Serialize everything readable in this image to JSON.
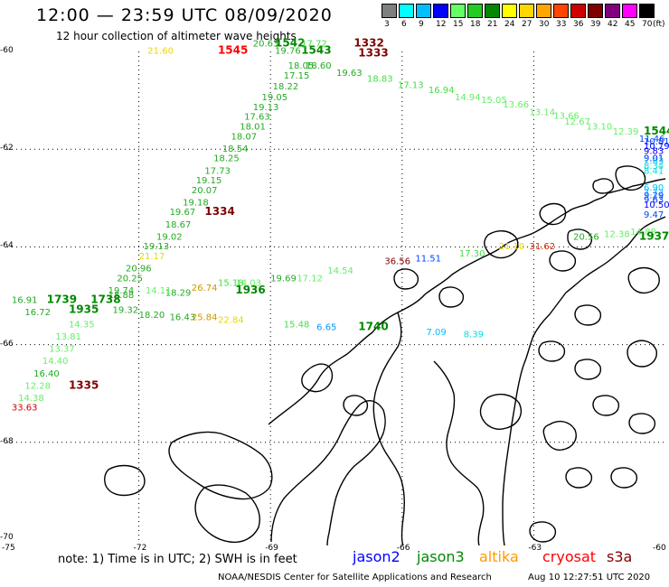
{
  "header": {
    "title": "12:00 — 23:59 UTC 08/09/2020",
    "subtitle": "12 hour collection of altimeter wave heights"
  },
  "legend": {
    "unit": "(ft)",
    "bins": [
      {
        "label": "3",
        "color": "#7f7f7f"
      },
      {
        "label": "6",
        "color": "#00ffff"
      },
      {
        "label": "9",
        "color": "#00bfff"
      },
      {
        "label": "12",
        "color": "#0000ff"
      },
      {
        "label": "15",
        "color": "#66ff66"
      },
      {
        "label": "18",
        "color": "#22cc22"
      },
      {
        "label": "21",
        "color": "#008800"
      },
      {
        "label": "24",
        "color": "#ffff00"
      },
      {
        "label": "27",
        "color": "#ffd700"
      },
      {
        "label": "30",
        "color": "#ffa500"
      },
      {
        "label": "33",
        "color": "#ff4500"
      },
      {
        "label": "36",
        "color": "#cc0000"
      },
      {
        "label": "39",
        "color": "#800000"
      },
      {
        "label": "42",
        "color": "#800080"
      },
      {
        "label": "45",
        "color": "#ff00ff"
      },
      {
        "label": "70",
        "color": "#000000"
      }
    ]
  },
  "axes": {
    "lon_labels": [
      "-75",
      "-72",
      "-69",
      "-66",
      "-63",
      "-60"
    ],
    "lat_labels": [
      "-60",
      "-62",
      "-64",
      "-66",
      "-68",
      "-70"
    ],
    "lon_range": [
      -75,
      -60
    ],
    "lat_range": [
      -60,
      -70
    ]
  },
  "observations": [
    {
      "t": "21.60",
      "lon": -71.8,
      "lat": -60.05,
      "c": "#e6d800"
    },
    {
      "t": "1545",
      "lon": -70.2,
      "lat": -60.05,
      "c": "#ff0000",
      "b": 1
    },
    {
      "t": "20.63",
      "lon": -69.4,
      "lat": -59.9,
      "c": "#22aa22"
    },
    {
      "t": "1542",
      "lon": -68.9,
      "lat": -59.9,
      "c": "#008800",
      "b": 1
    },
    {
      "t": "19.76",
      "lon": -68.9,
      "lat": -60.05,
      "c": "#22aa22"
    },
    {
      "t": "1543",
      "lon": -68.3,
      "lat": -60.05,
      "c": "#008800",
      "b": 1
    },
    {
      "t": "17.72",
      "lon": -68.3,
      "lat": -59.9,
      "c": "#44dd44"
    },
    {
      "t": "1332",
      "lon": -67.1,
      "lat": -59.9,
      "c": "#800000",
      "b": 1
    },
    {
      "t": "1333",
      "lon": -67.0,
      "lat": -60.1,
      "c": "#800000",
      "b": 1
    },
    {
      "t": "18.05",
      "lon": -68.6,
      "lat": -60.35,
      "c": "#22aa22"
    },
    {
      "t": "18.60",
      "lon": -68.2,
      "lat": -60.35,
      "c": "#22aa22"
    },
    {
      "t": "19.63",
      "lon": -67.5,
      "lat": -60.5,
      "c": "#22aa22"
    },
    {
      "t": "17.15",
      "lon": -68.7,
      "lat": -60.55,
      "c": "#22aa22"
    },
    {
      "t": "18.83",
      "lon": -66.8,
      "lat": -60.62,
      "c": "#44dd44"
    },
    {
      "t": "17.13",
      "lon": -66.1,
      "lat": -60.75,
      "c": "#44dd44"
    },
    {
      "t": "18.22",
      "lon": -68.95,
      "lat": -60.78,
      "c": "#22aa22"
    },
    {
      "t": "16.94",
      "lon": -65.4,
      "lat": -60.85,
      "c": "#44dd44"
    },
    {
      "t": "19.05",
      "lon": -69.2,
      "lat": -61.0,
      "c": "#22aa22"
    },
    {
      "t": "14.94",
      "lon": -64.8,
      "lat": -61.0,
      "c": "#66ee66"
    },
    {
      "t": "15.05",
      "lon": -64.2,
      "lat": -61.05,
      "c": "#66ee66"
    },
    {
      "t": "13.66",
      "lon": -63.7,
      "lat": -61.15,
      "c": "#66ee66"
    },
    {
      "t": "19.13",
      "lon": -69.4,
      "lat": -61.2,
      "c": "#22aa22"
    },
    {
      "t": "13.14",
      "lon": -63.1,
      "lat": -61.3,
      "c": "#66ee66"
    },
    {
      "t": "13.66",
      "lon": -62.55,
      "lat": -61.38,
      "c": "#66ee66"
    },
    {
      "t": "17.63",
      "lon": -69.6,
      "lat": -61.4,
      "c": "#22aa22"
    },
    {
      "t": "12.67",
      "lon": -62.3,
      "lat": -61.5,
      "c": "#66ee66"
    },
    {
      "t": "18.01",
      "lon": -69.7,
      "lat": -61.6,
      "c": "#22aa22"
    },
    {
      "t": "13.10",
      "lon": -61.8,
      "lat": -61.6,
      "c": "#66ee66"
    },
    {
      "t": "12.39",
      "lon": -61.2,
      "lat": -61.7,
      "c": "#66ee66"
    },
    {
      "t": "1544",
      "lon": -60.0,
      "lat": -61.7,
      "c": "#008800",
      "b": 1
    },
    {
      "t": "18.07",
      "lon": -69.9,
      "lat": -61.8,
      "c": "#22aa22"
    },
    {
      "t": "11.46",
      "lon": -60.6,
      "lat": -61.85,
      "c": "#0044ff"
    },
    {
      "t": "10.81",
      "lon": -60.1,
      "lat": -61.9,
      "c": "#0044ff"
    },
    {
      "t": "10.79",
      "lon": -59.6,
      "lat": -62.0,
      "c": "#0000ff"
    },
    {
      "t": "18.54",
      "lon": -70.1,
      "lat": -62.05,
      "c": "#22aa22"
    },
    {
      "t": "9.83",
      "lon": -59.1,
      "lat": -62.1,
      "c": "#0000ff"
    },
    {
      "t": "18.25",
      "lon": -70.3,
      "lat": -62.25,
      "c": "#22aa22"
    },
    {
      "t": "9.01",
      "lon": -58.7,
      "lat": -62.25,
      "c": "#0000ff"
    },
    {
      "t": "7.63",
      "lon": -58.3,
      "lat": -62.3,
      "c": "#00bfff"
    },
    {
      "t": "17.73",
      "lon": -70.5,
      "lat": -62.5,
      "c": "#22aa22"
    },
    {
      "t": "8.34",
      "lon": -57.9,
      "lat": -62.4,
      "c": "#00dddd"
    },
    {
      "t": "8.41",
      "lon": -57.6,
      "lat": -62.5,
      "c": "#00dddd"
    },
    {
      "t": "19.15",
      "lon": -70.7,
      "lat": -62.7,
      "c": "#22aa22"
    },
    {
      "t": "20.07",
      "lon": -70.8,
      "lat": -62.9,
      "c": "#22aa22"
    },
    {
      "t": "6.90",
      "lon": -57.4,
      "lat": -62.85,
      "c": "#00bfff"
    },
    {
      "t": "7.72",
      "lon": -57.9,
      "lat": -62.95,
      "c": "#00bfff"
    },
    {
      "t": "19.18",
      "lon": -71.0,
      "lat": -63.15,
      "c": "#22aa22"
    },
    {
      "t": "9.29",
      "lon": -58.5,
      "lat": -63.0,
      "c": "#0044ff"
    },
    {
      "t": "9.63",
      "lon": -58.9,
      "lat": -63.1,
      "c": "#0044ff"
    },
    {
      "t": "10.50",
      "lon": -59.5,
      "lat": -63.2,
      "c": "#0000ff"
    },
    {
      "t": "19.67",
      "lon": -71.3,
      "lat": -63.35,
      "c": "#22aa22"
    },
    {
      "t": "1334",
      "lon": -70.5,
      "lat": -63.35,
      "c": "#800000",
      "b": 1
    },
    {
      "t": "9.47",
      "lon": -60.0,
      "lat": -63.4,
      "c": "#0044ff"
    },
    {
      "t": "18.67",
      "lon": -71.4,
      "lat": -63.6,
      "c": "#22aa22"
    },
    {
      "t": "19.02",
      "lon": -71.6,
      "lat": -63.85,
      "c": "#22aa22"
    },
    {
      "t": "14.88",
      "lon": -60.8,
      "lat": -63.75,
      "c": "#66ee66"
    },
    {
      "t": "12.38",
      "lon": -61.4,
      "lat": -63.8,
      "c": "#66ee66"
    },
    {
      "t": "1937",
      "lon": -60.6,
      "lat": -63.85,
      "c": "#008800",
      "b": 1
    },
    {
      "t": "20.56",
      "lon": -62.1,
      "lat": -63.85,
      "c": "#22aa22"
    },
    {
      "t": "19.13",
      "lon": -71.9,
      "lat": -64.05,
      "c": "#22aa22"
    },
    {
      "t": "31.62",
      "lon": -63.1,
      "lat": -64.05,
      "c": "#dd2200"
    },
    {
      "t": "21.10",
      "lon": -63.8,
      "lat": -64.05,
      "c": "#e6d800"
    },
    {
      "t": "17.30",
      "lon": -64.7,
      "lat": -64.2,
      "c": "#44dd44"
    },
    {
      "t": "11.51",
      "lon": -65.7,
      "lat": -64.3,
      "c": "#0044ff"
    },
    {
      "t": "36.56",
      "lon": -66.4,
      "lat": -64.35,
      "c": "#800000"
    },
    {
      "t": "21.17",
      "lon": -72.0,
      "lat": -64.25,
      "c": "#e6d800"
    },
    {
      "t": "20.96",
      "lon": -72.3,
      "lat": -64.5,
      "c": "#22aa22"
    },
    {
      "t": "14.54",
      "lon": -67.7,
      "lat": -64.55,
      "c": "#66ee66"
    },
    {
      "t": "17.12",
      "lon": -68.4,
      "lat": -64.7,
      "c": "#66ee66"
    },
    {
      "t": "19.69",
      "lon": -69.0,
      "lat": -64.7,
      "c": "#22aa22"
    },
    {
      "t": "20.25",
      "lon": -72.5,
      "lat": -64.7,
      "c": "#22aa22"
    },
    {
      "t": "14.03",
      "lon": -69.8,
      "lat": -64.8,
      "c": "#66ee66"
    },
    {
      "t": "15.18",
      "lon": -70.2,
      "lat": -64.8,
      "c": "#44dd44"
    },
    {
      "t": "26.74",
      "lon": -70.8,
      "lat": -64.9,
      "c": "#cc9900"
    },
    {
      "t": "1936",
      "lon": -69.8,
      "lat": -64.95,
      "c": "#008800",
      "b": 1
    },
    {
      "t": "18.29",
      "lon": -71.4,
      "lat": -65.0,
      "c": "#22aa22"
    },
    {
      "t": "14.11",
      "lon": -71.85,
      "lat": -64.95,
      "c": "#66ee66"
    },
    {
      "t": "19.74",
      "lon": -72.7,
      "lat": -64.95,
      "c": "#22aa22"
    },
    {
      "t": "18.88",
      "lon": -72.7,
      "lat": -65.05,
      "c": "#22aa22"
    },
    {
      "t": "16.91",
      "lon": -74.9,
      "lat": -65.15,
      "c": "#22aa22"
    },
    {
      "t": "1739",
      "lon": -74.1,
      "lat": -65.15,
      "c": "#008800",
      "b": 1
    },
    {
      "t": "1935",
      "lon": -73.6,
      "lat": -65.35,
      "c": "#008800",
      "b": 1
    },
    {
      "t": "1738",
      "lon": -73.1,
      "lat": -65.15,
      "c": "#008800",
      "b": 1
    },
    {
      "t": "16.72",
      "lon": -74.6,
      "lat": -65.4,
      "c": "#22aa22"
    },
    {
      "t": "19.32",
      "lon": -72.6,
      "lat": -65.35,
      "c": "#22aa22"
    },
    {
      "t": "18.20",
      "lon": -72.0,
      "lat": -65.45,
      "c": "#22aa22"
    },
    {
      "t": "16.43",
      "lon": -71.3,
      "lat": -65.5,
      "c": "#22aa22"
    },
    {
      "t": "25.84",
      "lon": -70.8,
      "lat": -65.5,
      "c": "#cc9900"
    },
    {
      "t": "22.84",
      "lon": -70.2,
      "lat": -65.55,
      "c": "#e6d800"
    },
    {
      "t": "15.48",
      "lon": -68.7,
      "lat": -65.65,
      "c": "#44dd44"
    },
    {
      "t": "6.65",
      "lon": -67.95,
      "lat": -65.7,
      "c": "#0099ff"
    },
    {
      "t": "1740",
      "lon": -67.0,
      "lat": -65.7,
      "c": "#008800",
      "b": 1
    },
    {
      "t": "7.09",
      "lon": -65.45,
      "lat": -65.8,
      "c": "#00bfff"
    },
    {
      "t": "8.39",
      "lon": -64.6,
      "lat": -65.85,
      "c": "#00dddd"
    },
    {
      "t": "14.35",
      "lon": -73.6,
      "lat": -65.65,
      "c": "#66ee66"
    },
    {
      "t": "13.81",
      "lon": -73.9,
      "lat": -65.9,
      "c": "#66ee66"
    },
    {
      "t": "13.37",
      "lon": -74.05,
      "lat": -66.15,
      "c": "#66ee66"
    },
    {
      "t": "14.40",
      "lon": -74.2,
      "lat": -66.4,
      "c": "#66ee66"
    },
    {
      "t": "16.40",
      "lon": -74.4,
      "lat": -66.65,
      "c": "#22aa22"
    },
    {
      "t": "12.28",
      "lon": -74.6,
      "lat": -66.9,
      "c": "#66ee66"
    },
    {
      "t": "1335",
      "lon": -73.6,
      "lat": -66.9,
      "c": "#800000",
      "b": 1
    },
    {
      "t": "14.38",
      "lon": -74.75,
      "lat": -67.15,
      "c": "#66ee66"
    },
    {
      "t": "33.63",
      "lon": -74.9,
      "lat": -67.35,
      "c": "#cc0000"
    }
  ],
  "footer": {
    "note": "note: 1) Time is in UTC; 2) SWH is in feet",
    "satellites": [
      {
        "name": "jason2",
        "color": "#0000ff"
      },
      {
        "name": "jason3",
        "color": "#008800"
      },
      {
        "name": "altika",
        "color": "#ff9900"
      },
      {
        "name": "cryosat",
        "color": "#ff0000"
      },
      {
        "name": "s3a",
        "color": "#800000"
      }
    ],
    "credit": "NOAA/NESDIS Center for Satellite Applications and Research",
    "timestamp": "Aug 10 12:27:51 UTC 2020"
  }
}
